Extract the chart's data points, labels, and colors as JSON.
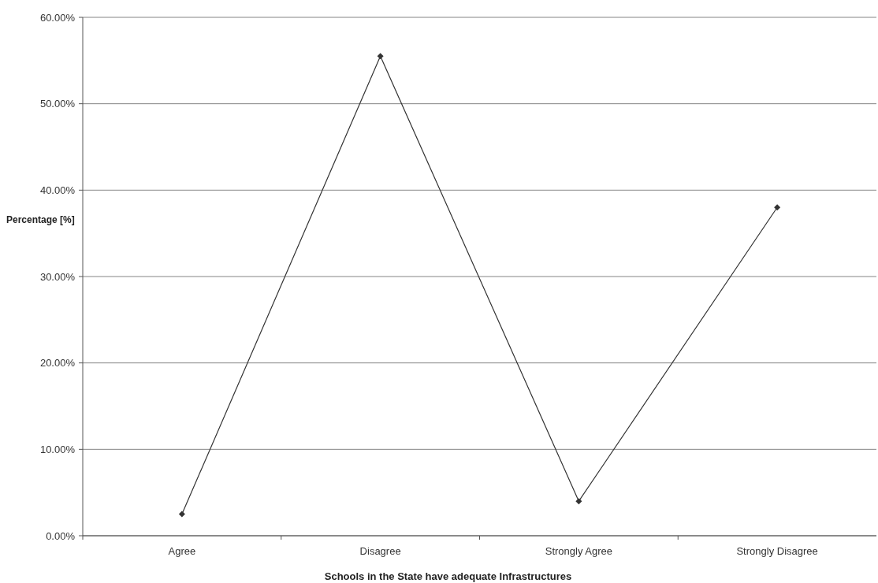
{
  "chart_data": {
    "type": "line",
    "xlabel": "Schools in the State have adequate Infrastructures",
    "ylabel": "Percentage [%]",
    "categories": [
      "Agree",
      "Disagree",
      "Strongly Agree",
      "Strongly Disagree"
    ],
    "series": [
      {
        "color": "#333333",
        "values": [
          2.5,
          55.5,
          4,
          38
        ]
      }
    ],
    "ylim": [
      0,
      60
    ],
    "yticks": [
      {
        "value": 0,
        "label": "0.00%"
      },
      {
        "value": 10,
        "label": "10.00%"
      },
      {
        "value": 20,
        "label": "20.00%"
      },
      {
        "value": 30,
        "label": "30.00%"
      },
      {
        "value": 40,
        "label": "40.00%"
      },
      {
        "value": 50,
        "label": "50.00%"
      },
      {
        "value": 60,
        "label": "60.00%"
      }
    ],
    "grid": "y",
    "marker": "diamond",
    "line_style": "solid"
  }
}
